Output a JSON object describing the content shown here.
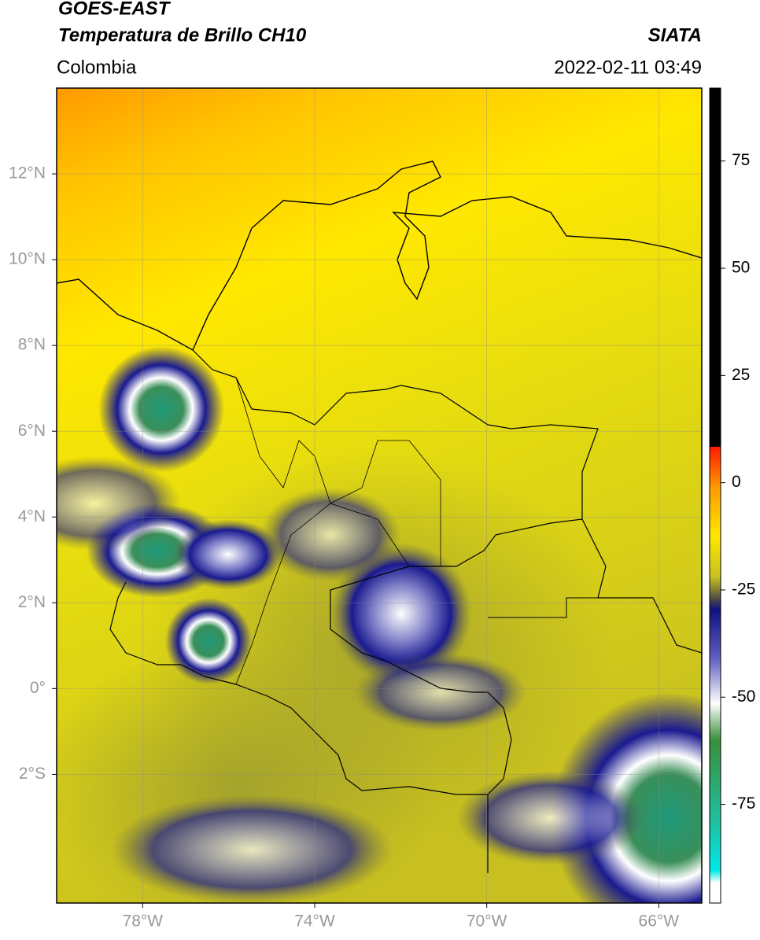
{
  "header": {
    "title": "GOES-EAST",
    "subtitle": "Temperatura de Brillo CH10",
    "source": "SIATA",
    "region": "Colombia",
    "timestamp": "2022-02-11 03:49"
  },
  "map": {
    "xlim": [
      -80,
      -65
    ],
    "ylim": [
      -5,
      14
    ],
    "xticks": [
      {
        "value": -78,
        "label": "78°W"
      },
      {
        "value": -74,
        "label": "74°W"
      },
      {
        "value": -70,
        "label": "70°W"
      },
      {
        "value": -66,
        "label": "66°W"
      }
    ],
    "yticks": [
      {
        "value": 12,
        "label": "12°N"
      },
      {
        "value": 10,
        "label": "10°N"
      },
      {
        "value": 8,
        "label": "8°N"
      },
      {
        "value": 6,
        "label": "6°N"
      },
      {
        "value": 4,
        "label": "4°N"
      },
      {
        "value": 2,
        "label": "2°N"
      },
      {
        "value": 0,
        "label": "0°"
      },
      {
        "value": -2,
        "label": "2°S"
      }
    ]
  },
  "colorbar": {
    "lim": [
      -98,
      92
    ],
    "ticks": [
      75,
      50,
      25,
      0,
      -25,
      -50,
      -75
    ]
  }
}
